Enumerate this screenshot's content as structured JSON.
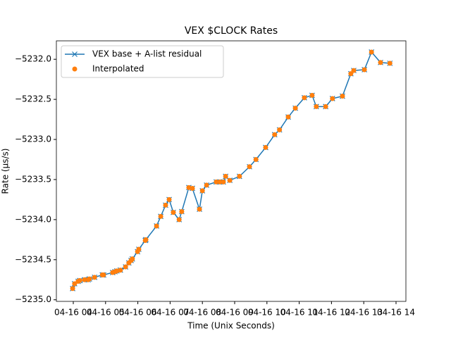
{
  "chart_data": {
    "type": "line",
    "title": "VEX $CLOCK Rates",
    "x_label": "Time (Unix Seconds)",
    "y_label": "Rate (μs/s)",
    "x": [
      3.98,
      4.04,
      4.15,
      4.2,
      4.35,
      4.46,
      4.5,
      4.66,
      4.9,
      4.94,
      5.22,
      5.29,
      5.35,
      5.46,
      5.62,
      5.72,
      5.79,
      5.83,
      5.99,
      6.03,
      6.23,
      6.25,
      6.58,
      6.71,
      6.86,
      6.97,
      7.1,
      7.28,
      7.36,
      7.58,
      7.69,
      7.91,
      8.0,
      8.13,
      8.43,
      8.54,
      8.65,
      8.72,
      8.85,
      9.15,
      9.46,
      9.66,
      9.96,
      10.24,
      10.39,
      10.66,
      10.88,
      11.16,
      11.4,
      11.53,
      11.82,
      12.03,
      12.34,
      12.6,
      12.69,
      13.02,
      13.24,
      13.52,
      13.81
    ],
    "series": [
      {
        "name": "VEX base + A-list residual",
        "color": "#1f77b4",
        "marker": "x",
        "line": true,
        "values": [
          -5234.86,
          -5234.8,
          -5234.77,
          -5234.76,
          -5234.75,
          -5234.75,
          -5234.74,
          -5234.72,
          -5234.69,
          -5234.69,
          -5234.66,
          -5234.65,
          -5234.64,
          -5234.63,
          -5234.59,
          -5234.54,
          -5234.51,
          -5234.49,
          -5234.4,
          -5234.37,
          -5234.26,
          -5234.25,
          -5234.08,
          -5233.96,
          -5233.82,
          -5233.75,
          -5233.91,
          -5234.0,
          -5233.9,
          -5233.6,
          -5233.61,
          -5233.87,
          -5233.64,
          -5233.57,
          -5233.53,
          -5233.53,
          -5233.53,
          -5233.46,
          -5233.51,
          -5233.46,
          -5233.34,
          -5233.25,
          -5233.1,
          -5232.94,
          -5232.88,
          -5232.72,
          -5232.61,
          -5232.48,
          -5232.45,
          -5232.59,
          -5232.59,
          -5232.49,
          -5232.46,
          -5232.18,
          -5232.14,
          -5232.13,
          -5231.91,
          -5232.04,
          -5232.05
        ]
      },
      {
        "name": "Interpolated",
        "color": "#ff7f0e",
        "marker": "o",
        "line": false,
        "values": [
          -5234.86,
          -5234.8,
          -5234.77,
          -5234.76,
          -5234.75,
          -5234.75,
          -5234.74,
          -5234.72,
          -5234.69,
          -5234.69,
          -5234.66,
          -5234.65,
          -5234.64,
          -5234.63,
          -5234.59,
          -5234.54,
          -5234.51,
          -5234.49,
          -5234.4,
          -5234.37,
          -5234.26,
          -5234.25,
          -5234.08,
          -5233.96,
          -5233.82,
          -5233.75,
          -5233.91,
          -5234.0,
          -5233.9,
          -5233.6,
          -5233.61,
          -5233.87,
          -5233.64,
          -5233.57,
          -5233.53,
          -5233.53,
          -5233.53,
          -5233.46,
          -5233.51,
          -5233.46,
          -5233.34,
          -5233.25,
          -5233.1,
          -5232.94,
          -5232.88,
          -5232.72,
          -5232.61,
          -5232.48,
          -5232.45,
          -5232.59,
          -5232.59,
          -5232.49,
          -5232.46,
          -5232.18,
          -5232.14,
          -5232.13,
          -5231.91,
          -5232.04,
          -5232.05
        ]
      }
    ],
    "xlim": [
      3.476,
      14.306
    ],
    "xticks": [
      {
        "value": 4,
        "label": "04-16 04"
      },
      {
        "value": 5,
        "label": "04-16 05"
      },
      {
        "value": 6,
        "label": "04-16 06"
      },
      {
        "value": 7,
        "label": "04-16 07"
      },
      {
        "value": 8,
        "label": "04-16 08"
      },
      {
        "value": 9,
        "label": "04-16 09"
      },
      {
        "value": 10,
        "label": "04-16 10"
      },
      {
        "value": 11,
        "label": "04-16 11"
      },
      {
        "value": 12,
        "label": "04-16 12"
      },
      {
        "value": 13,
        "label": "04-16 13"
      },
      {
        "value": 14,
        "label": "04-16 14"
      }
    ],
    "ylim": [
      -5235.02,
      -5231.77
    ],
    "yticks": [
      {
        "value": -5235.0,
        "label": "−5235.0"
      },
      {
        "value": -5234.5,
        "label": "−5234.5"
      },
      {
        "value": -5234.0,
        "label": "−5234.0"
      },
      {
        "value": -5233.5,
        "label": "−5233.5"
      },
      {
        "value": -5233.0,
        "label": "−5233.0"
      },
      {
        "value": -5232.5,
        "label": "−5232.5"
      },
      {
        "value": -5232.0,
        "label": "−5232.0"
      }
    ],
    "legend": "upper left",
    "grid": false
  }
}
